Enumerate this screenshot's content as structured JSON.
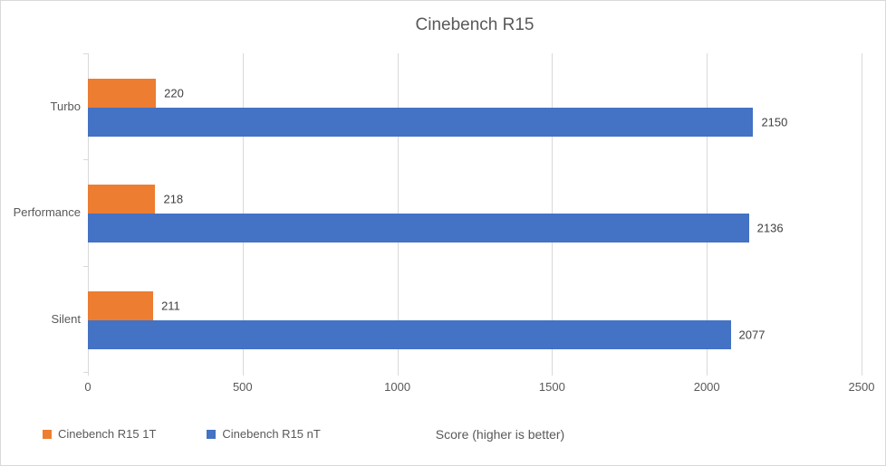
{
  "title": "Cinebench R15",
  "x_axis_title": "Score (higher is better)",
  "colors": {
    "series_1t": "#ED7D31",
    "series_nt": "#4472C4",
    "gridline": "#D9D9D9",
    "axis_text": "#595959",
    "value_label_text": "#404040",
    "chart_border": "#D9D9D9"
  },
  "chart_data": {
    "type": "bar",
    "orientation": "horizontal",
    "title": "Cinebench R15",
    "xlabel": "Score (higher is better)",
    "ylabel": "",
    "categories": [
      "Turbo",
      "Performance",
      "Silent"
    ],
    "series": [
      {
        "name": "Cinebench R15 1T",
        "color": "#ED7D31",
        "values": [
          220,
          218,
          211
        ]
      },
      {
        "name": "Cinebench R15 nT",
        "color": "#4472C4",
        "values": [
          2150,
          2136,
          2077
        ]
      }
    ],
    "value_labels": [
      [
        "220",
        "218",
        "211"
      ],
      [
        "2150",
        "2136",
        "2077"
      ]
    ],
    "xlim": [
      0,
      2500
    ],
    "xticks": [
      0,
      500,
      1000,
      1500,
      2000,
      2500
    ],
    "grid": true,
    "legend_position": "bottom-left"
  }
}
